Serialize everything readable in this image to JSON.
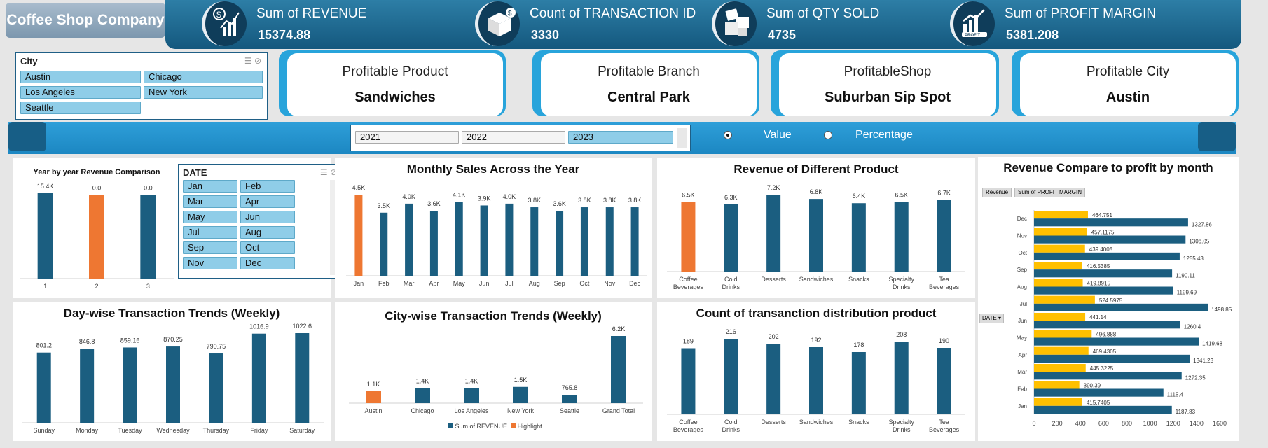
{
  "header": {
    "title": "Coffee Shop Company",
    "kpis": [
      {
        "label": "Sum of REVENUE",
        "value": "15374.88",
        "icon": "revenue-chart-icon"
      },
      {
        "label": "Count of TRANSACTION ID",
        "value": "3330",
        "icon": "box-dollar-icon"
      },
      {
        "label": "Sum of QTY SOLD",
        "value": "4735",
        "icon": "boxes-icon"
      },
      {
        "label": "Sum of PROFIT MARGIN",
        "value": "5381.208",
        "icon": "profit-chart-icon"
      }
    ]
  },
  "city_slicer": {
    "title": "City",
    "items": [
      "Austin",
      "Chicago",
      "Los Angeles",
      "New York",
      "Seattle"
    ]
  },
  "profitable": [
    {
      "title": "Profitable Product",
      "value": "Sandwiches"
    },
    {
      "title": "Profitable Branch",
      "value": "Central Park"
    },
    {
      "title": "ProfitableShop",
      "value": "Suburban Sip Spot"
    },
    {
      "title": "Profitable City",
      "value": "Austin"
    }
  ],
  "year_slicer": {
    "items": [
      "2021",
      "2022",
      "2023"
    ],
    "selected": "2023"
  },
  "toggle": {
    "value_label": "Value",
    "percentage_label": "Percentage",
    "selected": "Value"
  },
  "date_slicer": {
    "title": "DATE",
    "items": [
      "Jan",
      "Feb",
      "Mar",
      "Apr",
      "May",
      "Jun",
      "Jul",
      "Aug",
      "Sep",
      "Oct",
      "Nov",
      "Dec"
    ]
  },
  "legend": {
    "series1": "Sum of REVENUE",
    "series2": "Highlight"
  },
  "profit_chart_buttons": {
    "revenue": "Revenue",
    "profit": "Sum of PROFIT MARGIN",
    "date_filter": "DATE"
  },
  "colors": {
    "bar": "#1b5e80",
    "highlight": "#ee7732",
    "profit": "#ffc000",
    "accent": "#28a4db"
  },
  "chart_data": [
    {
      "id": "year-comparison",
      "type": "bar",
      "title": "Year by year  Revenue Comparison",
      "categories": [
        "1",
        "2",
        "3"
      ],
      "values": [
        15.4,
        0.0,
        0.0
      ],
      "labels": [
        "15.4K",
        "0.0",
        "0.0"
      ],
      "highlight_index": 1
    },
    {
      "id": "monthly-sales",
      "type": "bar",
      "title": "Monthly Sales Across the Year",
      "categories": [
        "Jan",
        "Feb",
        "Mar",
        "Apr",
        "May",
        "Jun",
        "Jul",
        "Aug",
        "Sep",
        "Oct",
        "Nov",
        "Dec"
      ],
      "values": [
        4.5,
        3.5,
        4.0,
        3.6,
        4.1,
        3.9,
        4.0,
        3.8,
        3.6,
        3.8,
        3.8,
        3.8
      ],
      "labels": [
        "4.5K",
        "3.5K",
        "4.0K",
        "3.6K",
        "4.1K",
        "3.9K",
        "4.0K",
        "3.8K",
        "3.6K",
        "3.8K",
        "3.8K",
        "3.8K"
      ],
      "highlight_index": 0
    },
    {
      "id": "revenue-product",
      "type": "bar",
      "title": "Revenue of Different Product",
      "categories": [
        "Coffee Beverages",
        "Cold Drinks",
        "Desserts",
        "Sandwiches",
        "Snacks",
        "Specialty Drinks",
        "Tea Beverages"
      ],
      "values": [
        6.5,
        6.3,
        7.2,
        6.8,
        6.4,
        6.5,
        6.7
      ],
      "labels": [
        "6.5K",
        "6.3K",
        "7.2K",
        "6.8K",
        "6.4K",
        "6.5K",
        "6.7K"
      ],
      "highlight_index": 0
    },
    {
      "id": "day-wise",
      "type": "bar",
      "title": "Day-wise Transaction Trends (Weekly)",
      "categories": [
        "Sunday",
        "Monday",
        "Tuesday",
        "Wednesday",
        "Thursday",
        "Friday",
        "Saturday"
      ],
      "values": [
        801.2,
        846.8,
        859.16,
        870.25,
        790.75,
        1016.9,
        1022.6
      ],
      "labels": [
        "801.2",
        "846.8",
        "859.16",
        "870.25",
        "790.75",
        "1016.9",
        "1022.6"
      ]
    },
    {
      "id": "city-wise",
      "type": "bar",
      "title": "City-wise Transaction Trends (Weekly)",
      "categories": [
        "Austin",
        "Chicago",
        "Los Angeles",
        "New York",
        "Seattle",
        "Grand Total"
      ],
      "values": [
        1.1,
        1.4,
        1.4,
        1.5,
        0.7658,
        6.2
      ],
      "labels": [
        "1.1K",
        "1.4K",
        "1.4K",
        "1.5K",
        "765.8",
        "6.2K"
      ],
      "highlight_index": 0
    },
    {
      "id": "count-product",
      "type": "bar",
      "title": "Count of transanction distribution product",
      "categories": [
        "Coffee Beverages",
        "Cold Drinks",
        "Desserts",
        "Sandwiches",
        "Snacks",
        "Specialty Drinks",
        "Tea Beverages"
      ],
      "values": [
        189,
        216,
        202,
        192,
        178,
        208,
        190
      ],
      "labels": [
        "189",
        "216",
        "202",
        "192",
        "178",
        "208",
        "190"
      ]
    },
    {
      "id": "revenue-vs-profit",
      "type": "bar",
      "orientation": "horizontal",
      "title": "Revenue Compare to profit by month",
      "categories": [
        "Jan",
        "Feb",
        "Mar",
        "Apr",
        "May",
        "Jun",
        "Jul",
        "Aug",
        "Sep",
        "Oct",
        "Nov",
        "Dec"
      ],
      "series": [
        {
          "name": "Revenue",
          "values": [
            1187.83,
            1115.4,
            1272.35,
            1341.23,
            1419.68,
            1260.4,
            1498.85,
            1199.69,
            1190.11,
            1255.43,
            1306.05,
            1327.86
          ]
        },
        {
          "name": "Sum of PROFIT MARGIN",
          "values": [
            415.7405,
            390.39,
            445.3225,
            469.4305,
            496.888,
            441.14,
            524.5975,
            419.8915,
            416.5385,
            439.4005,
            457.1175,
            464.751
          ]
        }
      ],
      "revenue_labels": [
        "1187.83",
        "1115.4",
        "1272.35",
        "1341.23",
        "1419.68",
        "1260.4",
        "1498.85",
        "1199.69",
        "1190.11",
        "1255.43",
        "1306.05",
        "1327.86"
      ],
      "profit_labels": [
        "415.7405",
        "390.39",
        "445.3225",
        "469.4305",
        "496.888",
        "441.14",
        "524.5975",
        "419.8915",
        "416.5385",
        "439.4005",
        "457.1175",
        "464.751"
      ],
      "xlim": [
        0,
        1600
      ],
      "xticks": [
        "0",
        "200",
        "400",
        "600",
        "800",
        "1000",
        "1200",
        "1400",
        "1600"
      ]
    }
  ]
}
